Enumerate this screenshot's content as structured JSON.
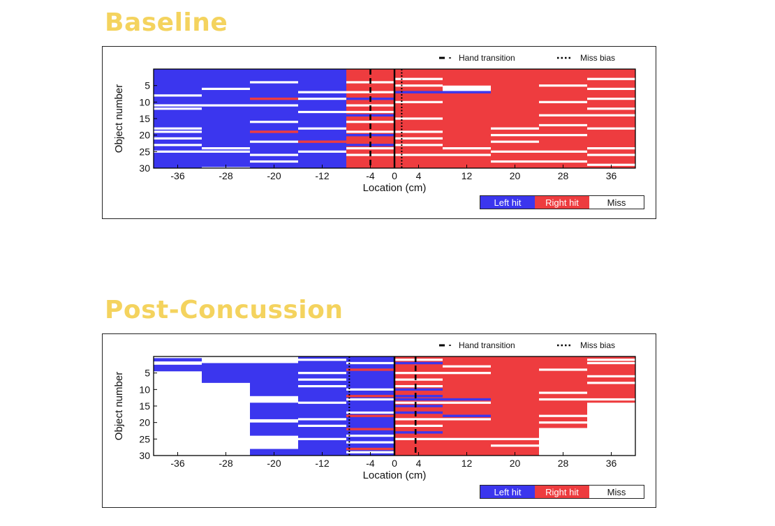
{
  "titles": {
    "top": "Baseline",
    "bottom": "Post-Concussion"
  },
  "colors": {
    "left_hit": "#3b36ee",
    "right_hit": "#ee3c3f",
    "miss": "#ffffff",
    "title": "#f4d35e"
  },
  "legend": {
    "left_hit": "Left hit",
    "right_hit": "Right hit",
    "miss": "Miss",
    "hand_transition": "Hand transition",
    "miss_bias": "Miss bias"
  },
  "chart_data": [
    {
      "type": "heatmap",
      "title": "Baseline",
      "xlabel": "Location (cm)",
      "ylabel": "Object number",
      "xlim": [
        -40,
        40
      ],
      "ylim": [
        30,
        0
      ],
      "xticks": [
        -36,
        -28,
        -20,
        -12,
        -4,
        0,
        4,
        12,
        20,
        28,
        36
      ],
      "yticks": [
        5,
        10,
        15,
        20,
        25,
        30
      ],
      "hand_transition_x": -4,
      "miss_bias_x": 1.2,
      "columns": [
        {
          "x_range": [
            -40,
            -32
          ],
          "default": "left",
          "misses": [
            8,
            11,
            12,
            18,
            19,
            21,
            23,
            25
          ],
          "other": [],
          "far_edge_miss": true
        },
        {
          "x_range": [
            -32,
            -24
          ],
          "default": "left",
          "misses": [
            6,
            11,
            24,
            25,
            30
          ],
          "other": []
        },
        {
          "x_range": [
            -24,
            -16
          ],
          "default": "left",
          "misses": [
            4,
            11,
            16,
            22,
            26,
            28
          ],
          "other": [
            9,
            19
          ]
        },
        {
          "x_range": [
            -16,
            -8
          ],
          "default": "left",
          "misses": [
            7,
            9,
            13,
            18,
            25
          ],
          "other": [
            22
          ]
        },
        {
          "x_range": [
            -8,
            0
          ],
          "default": "right",
          "misses": [
            4,
            7,
            11,
            13,
            16,
            19,
            24,
            26
          ],
          "other": [
            9,
            14,
            20,
            23
          ]
        },
        {
          "x_range": [
            0,
            8
          ],
          "default": "right",
          "misses": [
            3,
            5,
            10,
            15,
            19,
            21,
            23,
            26
          ],
          "other": [
            7
          ]
        },
        {
          "x_range": [
            8,
            16
          ],
          "default": "right",
          "misses": [
            24,
            26
          ],
          "other": [
            7
          ],
          "white_block": [
            5,
            7
          ]
        },
        {
          "x_range": [
            16,
            24
          ],
          "default": "right",
          "misses": [
            18,
            20,
            22,
            25,
            28
          ],
          "other": []
        },
        {
          "x_range": [
            24,
            32
          ],
          "default": "right",
          "misses": [
            5,
            10,
            14,
            17,
            20,
            25,
            28
          ],
          "other": []
        },
        {
          "x_range": [
            32,
            40
          ],
          "default": "right",
          "misses": [
            3,
            6,
            9,
            12,
            14,
            18,
            24,
            26,
            29
          ],
          "other": []
        }
      ]
    },
    {
      "type": "heatmap",
      "title": "Post-Concussion",
      "xlabel": "Location (cm)",
      "ylabel": "Object number",
      "xlim": [
        -40,
        40
      ],
      "ylim": [
        30,
        0
      ],
      "xticks": [
        -36,
        -28,
        -20,
        -12,
        -4,
        0,
        4,
        12,
        20,
        28,
        36
      ],
      "yticks": [
        5,
        10,
        15,
        20,
        25,
        30
      ],
      "hand_transition_x": 3.5,
      "miss_bias_x": -7.5,
      "columns": [
        {
          "x_range": [
            -40,
            -32
          ],
          "default": "miss",
          "hits": [
            [
              0.5,
              1.5
            ],
            [
              2.5,
              4.5
            ]
          ],
          "other": []
        },
        {
          "x_range": [
            -32,
            -24
          ],
          "default": "miss",
          "hits": [
            [
              2,
              8
            ]
          ],
          "other": []
        },
        {
          "x_range": [
            -24,
            -16
          ],
          "default": "miss",
          "hits": [
            [
              2,
              12
            ],
            [
              14,
              19
            ],
            [
              20,
              24
            ],
            [
              28,
              30
            ]
          ],
          "other": []
        },
        {
          "x_range": [
            -16,
            -8
          ],
          "default": "left",
          "misses": [
            1,
            5,
            7,
            9,
            14,
            19,
            21,
            25
          ],
          "other": []
        },
        {
          "x_range": [
            -8,
            0
          ],
          "default": "left",
          "misses": [
            2,
            10,
            13,
            17,
            24,
            26,
            29
          ],
          "other": [
            4,
            12,
            18,
            22,
            28
          ]
        },
        {
          "x_range": [
            0,
            8
          ],
          "default": "right",
          "misses": [
            1,
            5,
            7,
            9,
            14,
            19,
            21,
            25
          ],
          "other": [
            2,
            10,
            12,
            13,
            15,
            17,
            23
          ]
        },
        {
          "x_range": [
            8,
            16
          ],
          "default": "right",
          "misses": [
            3,
            5,
            14,
            19,
            25
          ],
          "other": [
            13,
            18
          ]
        },
        {
          "x_range": [
            16,
            24
          ],
          "default": "right",
          "misses": [
            25,
            27
          ],
          "other": []
        },
        {
          "x_range": [
            24,
            32
          ],
          "default": "right",
          "misses": [
            4,
            11,
            13,
            18,
            20,
            22
          ],
          "other": [],
          "miss_below": 22
        },
        {
          "x_range": [
            32,
            40
          ],
          "default": "right",
          "misses": [
            1,
            2,
            6,
            8,
            13
          ],
          "other": [],
          "miss_below": 14
        }
      ]
    }
  ]
}
